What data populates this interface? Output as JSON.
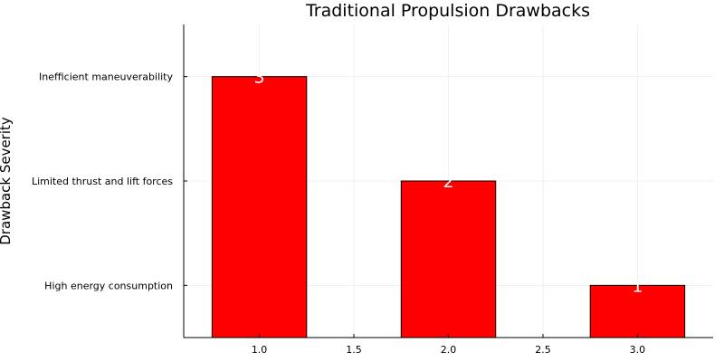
{
  "chart_data": {
    "type": "bar",
    "title": "Traditional Propulsion Drawbacks",
    "xlabel": "",
    "ylabel": "Drawback Severity",
    "x": [
      1.0,
      2.0,
      3.0
    ],
    "values": [
      3,
      2,
      1
    ],
    "bar_labels": [
      "3",
      "2",
      "1"
    ],
    "bar_color": "#ff0000",
    "xlim": [
      0.6,
      3.4
    ],
    "ylim": [
      0.5,
      3.5
    ],
    "xticks": [
      1.0,
      1.5,
      2.0,
      2.5,
      3.0
    ],
    "xtick_labels": [
      "1.0",
      "1.5",
      "2.0",
      "2.5",
      "3.0"
    ],
    "yticks": [
      1,
      2,
      3
    ],
    "ytick_labels": [
      "High energy consumption",
      "Limited thrust and lift forces",
      "Inefficient maneuverability"
    ],
    "grid": true,
    "legend": "none"
  }
}
